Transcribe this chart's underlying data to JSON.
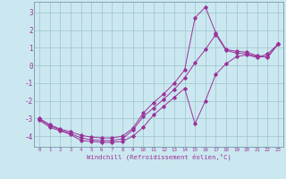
{
  "xlabel": "Windchill (Refroidissement éolien,°C)",
  "background_color": "#cbe8f0",
  "grid_color": "#9dc4cc",
  "line_color": "#993399",
  "spine_color": "#7799aa",
  "xlim": [
    -0.5,
    23.5
  ],
  "ylim": [
    -4.6,
    3.6
  ],
  "xticks": [
    0,
    1,
    2,
    3,
    4,
    5,
    6,
    7,
    8,
    9,
    10,
    11,
    12,
    13,
    14,
    15,
    16,
    17,
    18,
    19,
    20,
    21,
    22,
    23
  ],
  "yticks": [
    -4,
    -3,
    -2,
    -1,
    0,
    1,
    2,
    3
  ],
  "curve1_x": [
    0,
    1,
    2,
    3,
    4,
    5,
    6,
    7,
    8,
    9,
    10,
    11,
    12,
    13,
    14,
    15,
    16,
    17,
    18,
    19,
    20,
    21,
    22,
    23
  ],
  "curve1_y": [
    -3.1,
    -3.5,
    -3.7,
    -3.9,
    -4.25,
    -4.3,
    -4.35,
    -4.35,
    -4.3,
    -4.0,
    -3.5,
    -2.8,
    -2.3,
    -1.8,
    -1.3,
    -3.3,
    -2.0,
    -0.5,
    0.1,
    0.5,
    0.6,
    0.45,
    0.65,
    1.2
  ],
  "curve2_x": [
    0,
    1,
    2,
    3,
    4,
    5,
    6,
    7,
    8,
    9,
    10,
    11,
    12,
    13,
    14,
    15,
    16,
    17,
    18,
    19,
    20,
    21,
    22,
    23
  ],
  "curve2_y": [
    -3.05,
    -3.4,
    -3.65,
    -3.85,
    -4.1,
    -4.2,
    -4.25,
    -4.25,
    -4.15,
    -3.65,
    -2.9,
    -2.4,
    -1.9,
    -1.35,
    -0.7,
    0.15,
    0.9,
    1.75,
    0.85,
    0.7,
    0.65,
    0.5,
    0.5,
    1.2
  ],
  "curve3_x": [
    0,
    1,
    2,
    3,
    4,
    5,
    6,
    7,
    8,
    9,
    10,
    11,
    12,
    13,
    14,
    15,
    16,
    17,
    18,
    19,
    20,
    21,
    22,
    23
  ],
  "curve3_y": [
    -3.0,
    -3.35,
    -3.6,
    -3.75,
    -3.95,
    -4.05,
    -4.1,
    -4.1,
    -4.0,
    -3.55,
    -2.7,
    -2.1,
    -1.6,
    -1.0,
    -0.25,
    2.7,
    3.3,
    1.85,
    0.9,
    0.8,
    0.75,
    0.55,
    0.45,
    1.2
  ]
}
